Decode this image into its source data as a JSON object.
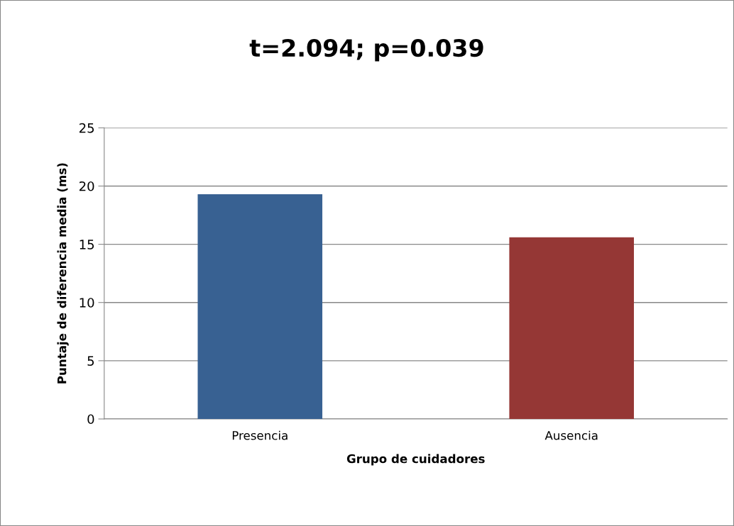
{
  "chart_data": {
    "type": "bar",
    "title": "t=2.094; p=0.039",
    "xlabel": "Grupo de cuidadores",
    "ylabel": "Puntaje de diferencia media (ms)",
    "categories": [
      "Presencia",
      "Ausencia"
    ],
    "values": [
      19.3,
      15.6
    ],
    "colors": [
      "#386192",
      "#953735"
    ],
    "ylim": [
      0,
      25
    ],
    "yticks": [
      0,
      5,
      10,
      15,
      20,
      25
    ],
    "grid": "y"
  }
}
